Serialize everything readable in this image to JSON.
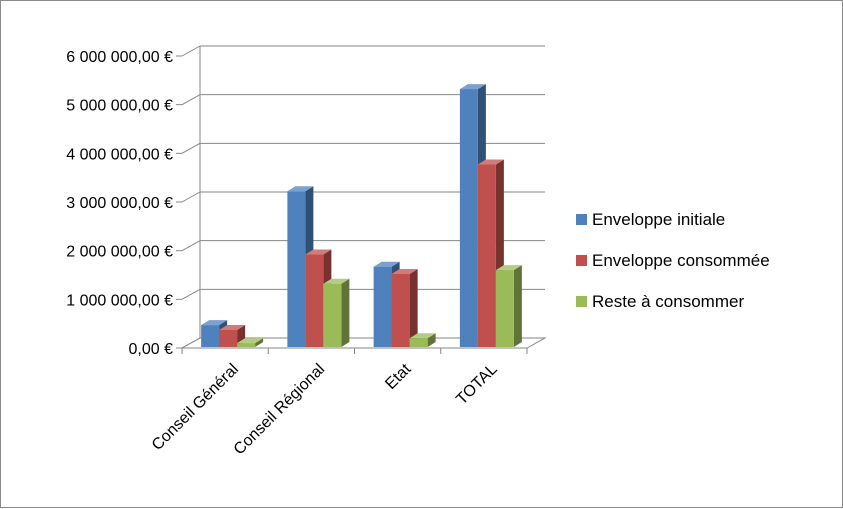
{
  "chart_data": {
    "type": "bar",
    "title": "",
    "xlabel": "",
    "ylabel": "",
    "categories": [
      "Conseil Général",
      "Conseil Régional",
      "Etat",
      "TOTAL"
    ],
    "series": [
      {
        "name": "Enveloppe initiale",
        "values": [
          450000,
          3200000,
          1650000,
          5300000
        ],
        "color": "#4F81BD"
      },
      {
        "name": "Enveloppe consommée",
        "values": [
          350000,
          1900000,
          1500000,
          3750000
        ],
        "color": "#C0504D"
      },
      {
        "name": "Reste à consommer",
        "values": [
          80000,
          1300000,
          180000,
          1580000
        ],
        "color": "#9BBB59"
      }
    ],
    "ylim": [
      0,
      6000000
    ],
    "yticks": [
      "0,00 €",
      "1 000 000,00 €",
      "2 000 000,00 €",
      "3 000 000,00 €",
      "4 000 000,00 €",
      "5 000 000,00 €",
      "6 000 000,00 €"
    ],
    "grid": true,
    "legend_position": "right",
    "style": "3d-clustered-column"
  }
}
